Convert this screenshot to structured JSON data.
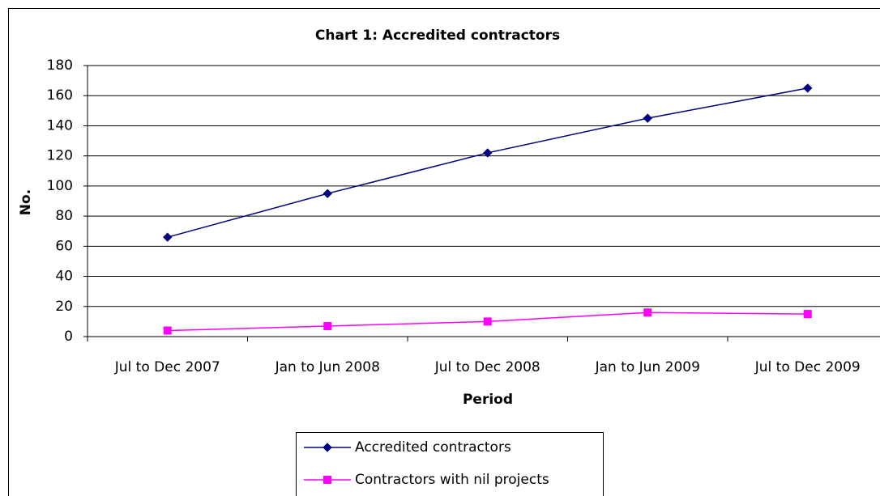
{
  "chart_data": {
    "type": "line",
    "title": "Chart 1: Accredited contractors",
    "x_label": "Period",
    "y_label": "No.",
    "categories": [
      "Jul to Dec 2007",
      "Jan to Jun 2008",
      "Jul to Dec 2008",
      "Jan to Jun 2009",
      "Jul to Dec 2009"
    ],
    "series": [
      {
        "name": "Accredited contractors",
        "color": "#000080",
        "marker": "diamond",
        "values": [
          66,
          95,
          122,
          145,
          165
        ]
      },
      {
        "name": "Contractors with nil projects",
        "color": "#ff00ff",
        "marker": "square",
        "values": [
          4,
          7,
          10,
          16,
          15
        ]
      }
    ],
    "ylim": [
      0,
      180
    ],
    "yticks": [
      0,
      20,
      40,
      60,
      80,
      100,
      120,
      140,
      160,
      180
    ],
    "grid": true,
    "legend": "bottom"
  }
}
